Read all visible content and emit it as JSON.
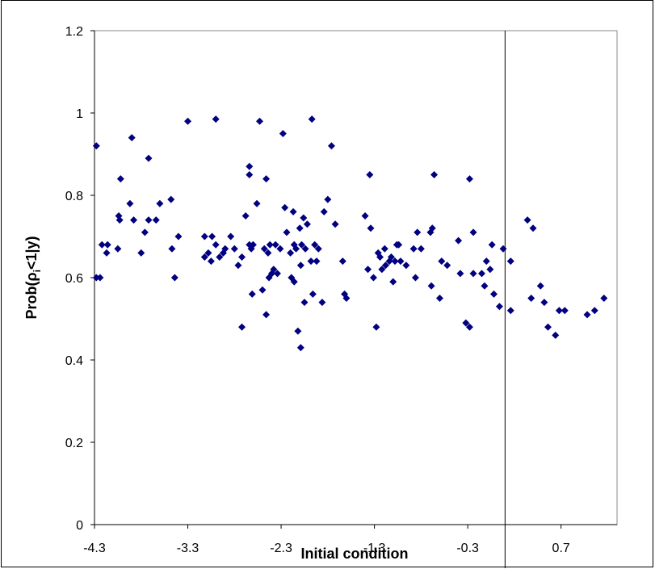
{
  "chart_data": {
    "type": "scatter",
    "title": "",
    "xlabel": "Initial condition",
    "ylabel": "Prob(ρi<1|y)",
    "ylabel_parts": {
      "prefix": "Prob(",
      "symbol": "ρ",
      "subscript": "i",
      "suffix": "<1|y)"
    },
    "xlim": [
      -4.3,
      1.3
    ],
    "ylim": [
      0,
      1.2
    ],
    "x_tick_values": [
      -4.3,
      -3.3,
      -2.3,
      -1.3,
      -0.3,
      0.7
    ],
    "x_tick_labels": [
      "-4.3",
      "-3.3",
      "-2.3",
      "-1.3",
      "-0.3",
      "0.7"
    ],
    "y_tick_values": [
      0,
      0.2,
      0.4,
      0.6,
      0.8,
      1,
      1.2
    ],
    "y_tick_labels": [
      "0",
      "0.2",
      "0.4",
      "0.6",
      "0.8",
      "1",
      "1.2"
    ],
    "vertical_reference_line_x": 0.1,
    "grid": false,
    "legend": "none",
    "marker": "diamond",
    "marker_color": "#000080",
    "points": [
      [
        -4.28,
        0.92
      ],
      [
        -4.28,
        0.6
      ],
      [
        -4.24,
        0.6
      ],
      [
        -4.22,
        0.68
      ],
      [
        -4.17,
        0.66
      ],
      [
        -4.16,
        0.68
      ],
      [
        -4.05,
        0.67
      ],
      [
        -4.04,
        0.75
      ],
      [
        -4.03,
        0.74
      ],
      [
        -4.02,
        0.84
      ],
      [
        -3.92,
        0.78
      ],
      [
        -3.9,
        0.94
      ],
      [
        -3.88,
        0.74
      ],
      [
        -3.8,
        0.66
      ],
      [
        -3.76,
        0.71
      ],
      [
        -3.72,
        0.89
      ],
      [
        -3.72,
        0.74
      ],
      [
        -3.64,
        0.74
      ],
      [
        -3.6,
        0.78
      ],
      [
        -3.48,
        0.79
      ],
      [
        -3.47,
        0.67
      ],
      [
        -3.44,
        0.6
      ],
      [
        -3.4,
        0.7
      ],
      [
        -3.3,
        0.98
      ],
      [
        -3.12,
        0.7
      ],
      [
        -3.12,
        0.65
      ],
      [
        -3.08,
        0.66
      ],
      [
        -3.05,
        0.64
      ],
      [
        -3.04,
        0.7
      ],
      [
        -3.0,
        0.985
      ],
      [
        -3.0,
        0.68
      ],
      [
        -2.96,
        0.65
      ],
      [
        -2.92,
        0.66
      ],
      [
        -2.9,
        0.67
      ],
      [
        -2.84,
        0.7
      ],
      [
        -2.8,
        0.67
      ],
      [
        -2.76,
        0.63
      ],
      [
        -2.72,
        0.65
      ],
      [
        -2.72,
        0.48
      ],
      [
        -2.68,
        0.75
      ],
      [
        -2.64,
        0.85
      ],
      [
        -2.64,
        0.87
      ],
      [
        -2.64,
        0.68
      ],
      [
        -2.62,
        0.67
      ],
      [
        -2.61,
        0.56
      ],
      [
        -2.6,
        0.68
      ],
      [
        -2.56,
        0.78
      ],
      [
        -2.53,
        0.98
      ],
      [
        -2.5,
        0.57
      ],
      [
        -2.48,
        0.67
      ],
      [
        -2.46,
        0.84
      ],
      [
        -2.46,
        0.51
      ],
      [
        -2.44,
        0.66
      ],
      [
        -2.43,
        0.6
      ],
      [
        -2.42,
        0.68
      ],
      [
        -2.4,
        0.61
      ],
      [
        -2.38,
        0.62
      ],
      [
        -2.36,
        0.68
      ],
      [
        -2.34,
        0.61
      ],
      [
        -2.31,
        0.67
      ],
      [
        -2.28,
        0.95
      ],
      [
        -2.26,
        0.77
      ],
      [
        -2.24,
        0.71
      ],
      [
        -2.2,
        0.66
      ],
      [
        -2.19,
        0.6
      ],
      [
        -2.17,
        0.76
      ],
      [
        -2.16,
        0.59
      ],
      [
        -2.16,
        0.68
      ],
      [
        -2.14,
        0.67
      ],
      [
        -2.12,
        0.47
      ],
      [
        -2.1,
        0.72
      ],
      [
        -2.09,
        0.63
      ],
      [
        -2.09,
        0.43
      ],
      [
        -2.08,
        0.68
      ],
      [
        -2.06,
        0.745
      ],
      [
        -2.05,
        0.54
      ],
      [
        -2.04,
        0.67
      ],
      [
        -2.02,
        0.73
      ],
      [
        -1.98,
        0.64
      ],
      [
        -1.97,
        0.985
      ],
      [
        -1.96,
        0.56
      ],
      [
        -1.94,
        0.68
      ],
      [
        -1.92,
        0.64
      ],
      [
        -1.9,
        0.67
      ],
      [
        -1.86,
        0.54
      ],
      [
        -1.84,
        0.76
      ],
      [
        -1.8,
        0.79
      ],
      [
        -1.76,
        0.92
      ],
      [
        -1.72,
        0.73
      ],
      [
        -1.64,
        0.64
      ],
      [
        -1.62,
        0.56
      ],
      [
        -1.6,
        0.55
      ],
      [
        -1.4,
        0.75
      ],
      [
        -1.37,
        0.62
      ],
      [
        -1.35,
        0.85
      ],
      [
        -1.34,
        0.72
      ],
      [
        -1.31,
        0.6
      ],
      [
        -1.28,
        0.48
      ],
      [
        -1.26,
        0.66
      ],
      [
        -1.24,
        0.65
      ],
      [
        -1.22,
        0.62
      ],
      [
        -1.19,
        0.67
      ],
      [
        -1.18,
        0.63
      ],
      [
        -1.14,
        0.64
      ],
      [
        -1.12,
        0.65
      ],
      [
        -1.1,
        0.59
      ],
      [
        -1.08,
        0.64
      ],
      [
        -1.06,
        0.68
      ],
      [
        -1.04,
        0.68
      ],
      [
        -1.02,
        0.64
      ],
      [
        -0.96,
        0.63
      ],
      [
        -0.88,
        0.67
      ],
      [
        -0.86,
        0.6
      ],
      [
        -0.84,
        0.71
      ],
      [
        -0.8,
        0.67
      ],
      [
        -0.7,
        0.71
      ],
      [
        -0.69,
        0.58
      ],
      [
        -0.68,
        0.72
      ],
      [
        -0.66,
        0.85
      ],
      [
        -0.6,
        0.55
      ],
      [
        -0.58,
        0.64
      ],
      [
        -0.52,
        0.63
      ],
      [
        -0.4,
        0.69
      ],
      [
        -0.38,
        0.61
      ],
      [
        -0.32,
        0.49
      ],
      [
        -0.28,
        0.48
      ],
      [
        -0.28,
        0.84
      ],
      [
        -0.24,
        0.71
      ],
      [
        -0.24,
        0.61
      ],
      [
        -0.15,
        0.61
      ],
      [
        -0.12,
        0.58
      ],
      [
        -0.1,
        0.64
      ],
      [
        -0.06,
        0.62
      ],
      [
        -0.04,
        0.68
      ],
      [
        -0.02,
        0.56
      ],
      [
        0.04,
        0.53
      ],
      [
        0.08,
        0.67
      ],
      [
        0.16,
        0.64
      ],
      [
        0.16,
        0.52
      ],
      [
        0.34,
        0.74
      ],
      [
        0.38,
        0.55
      ],
      [
        0.4,
        0.72
      ],
      [
        0.48,
        0.58
      ],
      [
        0.52,
        0.54
      ],
      [
        0.56,
        0.48
      ],
      [
        0.64,
        0.46
      ],
      [
        0.68,
        0.52
      ],
      [
        0.74,
        0.52
      ],
      [
        0.98,
        0.51
      ],
      [
        1.06,
        0.52
      ],
      [
        1.16,
        0.55
      ]
    ]
  }
}
